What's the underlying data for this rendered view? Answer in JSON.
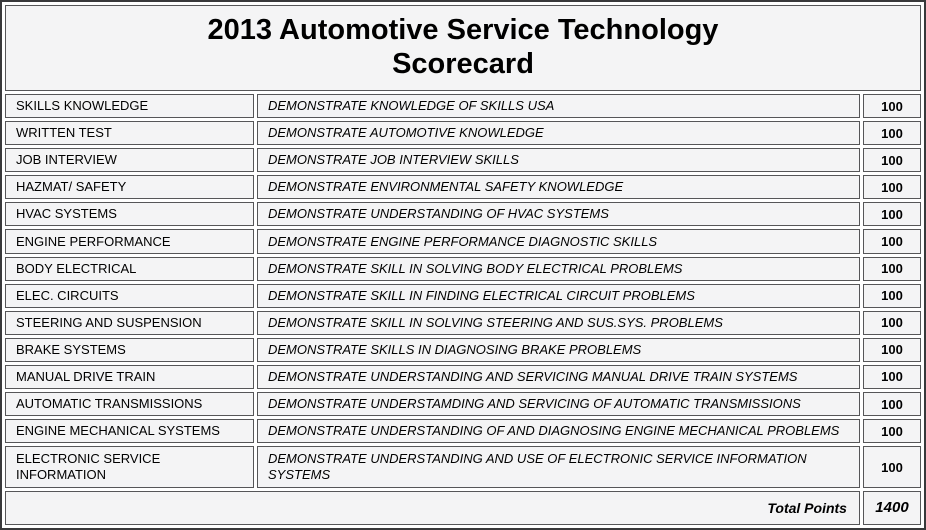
{
  "title": "2013 Automotive Service Technology Scorecard",
  "table": {
    "rows": [
      {
        "category": "SKILLS KNOWLEDGE",
        "description": "DEMONSTRATE KNOWLEDGE OF SKILLS USA",
        "points": "100"
      },
      {
        "category": "WRITTEN TEST",
        "description": "DEMONSTRATE AUTOMOTIVE KNOWLEDGE",
        "points": "100"
      },
      {
        "category": "JOB INTERVIEW",
        "description": "DEMONSTRATE JOB INTERVIEW SKILLS",
        "points": "100"
      },
      {
        "category": "HAZMAT/ SAFETY",
        "description": "DEMONSTRATE ENVIRONMENTAL SAFETY KNOWLEDGE",
        "points": "100"
      },
      {
        "category": "HVAC SYSTEMS",
        "description": "DEMONSTRATE UNDERSTANDING OF HVAC SYSTEMS",
        "points": "100"
      },
      {
        "category": "ENGINE PERFORMANCE",
        "description": "DEMONSTRATE ENGINE PERFORMANCE DIAGNOSTIC SKILLS",
        "points": "100"
      },
      {
        "category": "BODY ELECTRICAL",
        "description": "DEMONSTRATE SKILL IN SOLVING BODY ELECTRICAL PROBLEMS",
        "points": "100"
      },
      {
        "category": "ELEC. CIRCUITS",
        "description": "DEMONSTRATE SKILL IN FINDING ELECTRICAL CIRCUIT PROBLEMS",
        "points": "100"
      },
      {
        "category": "STEERING AND SUSPENSION",
        "description": "DEMONSTRATE SKILL IN SOLVING STEERING AND SUS.SYS. PROBLEMS",
        "points": "100"
      },
      {
        "category": "BRAKE SYSTEMS",
        "description": "DEMONSTRATE SKILLS IN DIAGNOSING BRAKE PROBLEMS",
        "points": "100"
      },
      {
        "category": "MANUAL DRIVE TRAIN",
        "description": "DEMONSTRATE UNDERSTANDING AND SERVICING MANUAL DRIVE TRAIN SYSTEMS",
        "points": "100"
      },
      {
        "category": "AUTOMATIC TRANSMISSIONS",
        "description": "DEMONSTRATE UNDERSTAMDING AND SERVICING OF AUTOMATIC TRANSMISSIONS",
        "points": "100"
      },
      {
        "category": "ENGINE MECHANICAL SYSTEMS",
        "description": "DEMONSTRATE UNDERSTANDING OF AND DIAGNOSING ENGINE MECHANICAL PROBLEMS",
        "points": "100"
      },
      {
        "category": "ELECTRONIC SERVICE INFORMATION",
        "description": "DEMONSTRATE UNDERSTANDING AND USE OF ELECTRONIC SERVICE INFORMATION SYSTEMS",
        "points": "100"
      }
    ],
    "total_label": "Total Points",
    "total_value": "1400"
  },
  "colors": {
    "cell_bg": "#f4f4f5",
    "cell_border": "#565658",
    "outer_border": "#39393b"
  }
}
